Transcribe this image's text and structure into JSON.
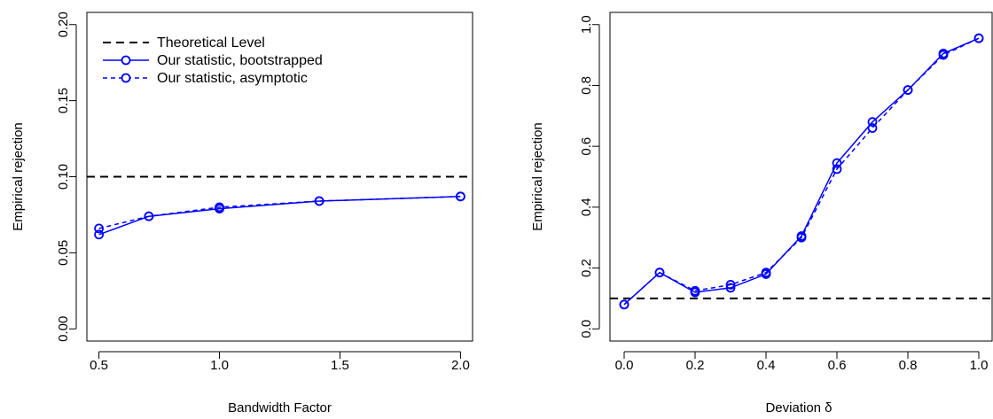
{
  "chart_data": [
    {
      "type": "line",
      "title": "",
      "xlabel": "Bandwidth Factor",
      "ylabel": "Empirical rejection",
      "xlim": [
        0.45,
        2.05
      ],
      "ylim": [
        0.0,
        0.2
      ],
      "x_ticks": [
        0.5,
        1.0,
        1.5,
        2.0
      ],
      "x_tick_labels": [
        "0.5",
        "1.0",
        "1.5",
        "2.0"
      ],
      "y_ticks": [
        0.0,
        0.05,
        0.1,
        0.15,
        0.2
      ],
      "y_tick_labels": [
        "0.00",
        "0.05",
        "0.10",
        "0.15",
        "0.20"
      ],
      "grid": false,
      "legend": {
        "placement": "top-left",
        "entries": [
          "Theoretical Level",
          "Our statistic,  bootstrapped",
          "Our statistic,  asymptotic"
        ]
      },
      "reference_line": {
        "y": 0.1,
        "color": "#000000",
        "style": "dashed"
      },
      "x": [
        0.5,
        0.707,
        1.0,
        1.414,
        2.0
      ],
      "series": [
        {
          "name": "Our statistic,  bootstrapped",
          "values": [
            0.062,
            0.074,
            0.079,
            0.084,
            0.087
          ],
          "color": "#0000ff",
          "style": "solid"
        },
        {
          "name": "Our statistic,  asymptotic",
          "values": [
            0.066,
            0.074,
            0.08,
            0.084,
            0.087
          ],
          "color": "#0000ff",
          "style": "dashed"
        }
      ]
    },
    {
      "type": "line",
      "title": "",
      "xlabel": "Deviation δ",
      "ylabel": "Empirical rejection",
      "xlim": [
        0.0,
        1.0
      ],
      "ylim": [
        0.0,
        1.0
      ],
      "x_ticks": [
        0.0,
        0.2,
        0.4,
        0.6,
        0.8,
        1.0
      ],
      "x_tick_labels": [
        "0.0",
        "0.2",
        "0.4",
        "0.6",
        "0.8",
        "1.0"
      ],
      "y_ticks": [
        0.0,
        0.2,
        0.4,
        0.6,
        0.8,
        1.0
      ],
      "y_tick_labels": [
        "0.0",
        "0.2",
        "0.4",
        "0.6",
        "0.8",
        "1.0"
      ],
      "grid": false,
      "reference_line": {
        "y": 0.1,
        "color": "#000000",
        "style": "dashed"
      },
      "x": [
        0.0,
        0.1,
        0.2,
        0.3,
        0.4,
        0.5,
        0.6,
        0.7,
        0.8,
        0.9,
        1.0
      ],
      "series": [
        {
          "name": "Our statistic,  bootstrapped",
          "values": [
            0.08,
            0.185,
            0.12,
            0.135,
            0.18,
            0.305,
            0.545,
            0.68,
            0.785,
            0.905,
            0.955
          ],
          "color": "#0000ff",
          "style": "solid"
        },
        {
          "name": "Our statistic,  asymptotic",
          "values": [
            0.08,
            0.185,
            0.125,
            0.145,
            0.185,
            0.3,
            0.525,
            0.66,
            0.785,
            0.9,
            0.955
          ],
          "color": "#0000ff",
          "style": "dashed"
        }
      ]
    }
  ]
}
